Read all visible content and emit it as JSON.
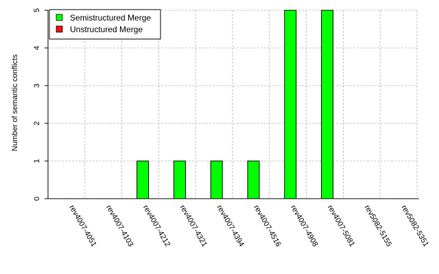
{
  "chart_data": {
    "type": "bar",
    "title": "",
    "xlabel": "",
    "ylabel": "Number of semantic conflicts",
    "ylim": [
      0,
      5
    ],
    "yticks": [
      0,
      1,
      2,
      3,
      4,
      5
    ],
    "grid": true,
    "legend_position": "top-left",
    "categories": [
      "rev4007-4051",
      "rev4007-4103",
      "rev4007-4212",
      "rev4007-4321",
      "rev4007-4394",
      "rev4007-4516",
      "rev4007-4908",
      "rev4007-5081",
      "rev5082-5155",
      "rev5082-5351"
    ],
    "series": [
      {
        "name": "Semistructured Merge",
        "color": "#00ff00",
        "values": [
          0,
          0,
          1,
          1,
          1,
          1,
          5,
          5,
          0,
          0
        ]
      },
      {
        "name": "Unstructured Merge",
        "color": "#ee1111",
        "values": [
          0,
          0,
          0,
          0,
          0,
          0,
          0,
          0,
          0,
          0
        ]
      }
    ]
  }
}
